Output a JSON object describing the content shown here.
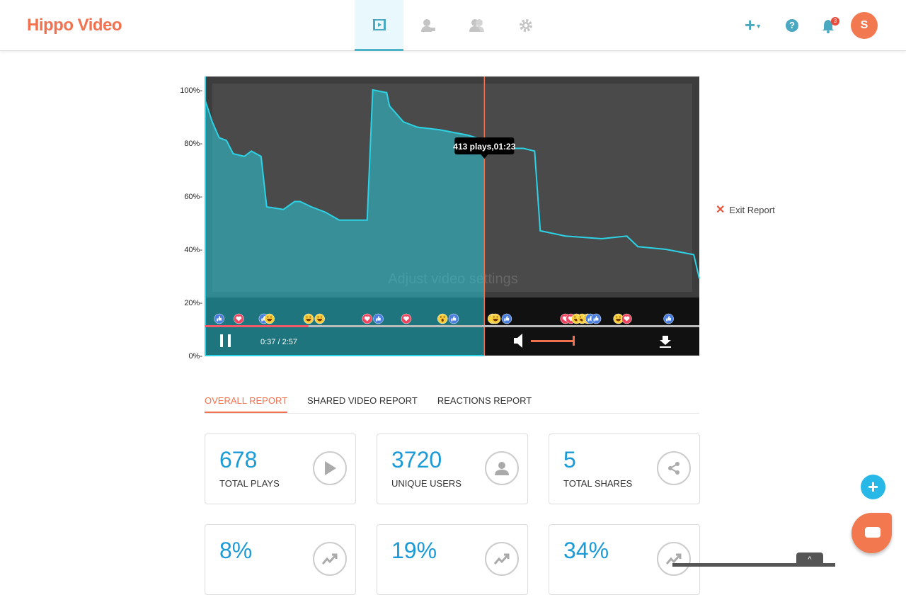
{
  "header": {
    "logo": "Hippo Video",
    "nav": [
      {
        "icon": "video-library-icon",
        "active": true
      },
      {
        "icon": "webcam-user-icon"
      },
      {
        "icon": "contacts-icon"
      },
      {
        "icon": "gear-icon"
      }
    ],
    "notification_count": "3",
    "avatar_initial": "S"
  },
  "player": {
    "time": "0:37 / 2:57",
    "progress_percent": 20.9,
    "volume_percent": 100,
    "tooltip": "413 plays,01:23",
    "overlay_text": "Adjust video settings"
  },
  "chart_data": {
    "type": "area",
    "title": "",
    "xlabel": "",
    "ylabel": "",
    "ylim": [
      0,
      100
    ],
    "xlim": [
      0,
      177
    ],
    "y_ticks": [
      "0%",
      "20%",
      "40%",
      "60%",
      "80%",
      "100%"
    ],
    "color": "#2cd3e6",
    "x": [
      0,
      2.5,
      5,
      7.6,
      10,
      14,
      16.5,
      20,
      22,
      28,
      32,
      34,
      38,
      43,
      48,
      53,
      58,
      60,
      65,
      66,
      71,
      76,
      84,
      94,
      100,
      109,
      114,
      118,
      120,
      129,
      142,
      151,
      155,
      165,
      175,
      177
    ],
    "y": [
      96,
      88,
      82,
      81,
      76,
      75,
      77,
      75,
      56,
      55,
      58,
      58,
      56,
      54,
      51,
      51,
      51,
      100,
      99,
      94,
      88,
      86,
      85,
      83,
      81,
      78,
      78,
      77,
      47,
      45,
      44,
      45,
      41,
      40,
      38,
      29
    ],
    "highlight_x": 100
  },
  "reactions": [
    {
      "t": 5,
      "type": "like"
    },
    {
      "t": 12,
      "type": "love"
    },
    {
      "t": 21,
      "type": "like"
    },
    {
      "t": 23,
      "type": "haha"
    },
    {
      "t": 37,
      "type": "haha"
    },
    {
      "t": 41,
      "type": "haha"
    },
    {
      "t": 58,
      "type": "love"
    },
    {
      "t": 62,
      "type": "like"
    },
    {
      "t": 72,
      "type": "love"
    },
    {
      "t": 85,
      "type": "wow"
    },
    {
      "t": 89,
      "type": "like"
    },
    {
      "t": 103,
      "type": "haha"
    },
    {
      "t": 104,
      "type": "haha"
    },
    {
      "t": 108,
      "type": "like"
    },
    {
      "t": 129,
      "type": "love"
    },
    {
      "t": 131,
      "type": "love"
    },
    {
      "t": 133,
      "type": "haha"
    },
    {
      "t": 135,
      "type": "haha"
    },
    {
      "t": 137,
      "type": "haha"
    },
    {
      "t": 138,
      "type": "like"
    },
    {
      "t": 140,
      "type": "like"
    },
    {
      "t": 148,
      "type": "haha"
    },
    {
      "t": 151,
      "type": "love"
    },
    {
      "t": 166,
      "type": "like"
    }
  ],
  "exit_label": "Exit Report",
  "tabs": [
    {
      "label": "OVERALL REPORT",
      "active": true
    },
    {
      "label": "SHARED VIDEO REPORT"
    },
    {
      "label": "REACTIONS REPORT"
    }
  ],
  "cards": [
    {
      "value": "678",
      "label": "TOTAL PLAYS",
      "icon": "play-icon"
    },
    {
      "value": "3720",
      "label": "UNIQUE USERS",
      "icon": "user-icon"
    },
    {
      "value": "5",
      "label": "TOTAL SHARES",
      "icon": "share-icon"
    },
    {
      "value": "8%",
      "label": "",
      "icon": "trend-up-icon"
    },
    {
      "value": "19%",
      "label": "",
      "icon": "trend-up-icon"
    },
    {
      "value": "34%",
      "label": "",
      "icon": "trend-up-icon"
    }
  ]
}
